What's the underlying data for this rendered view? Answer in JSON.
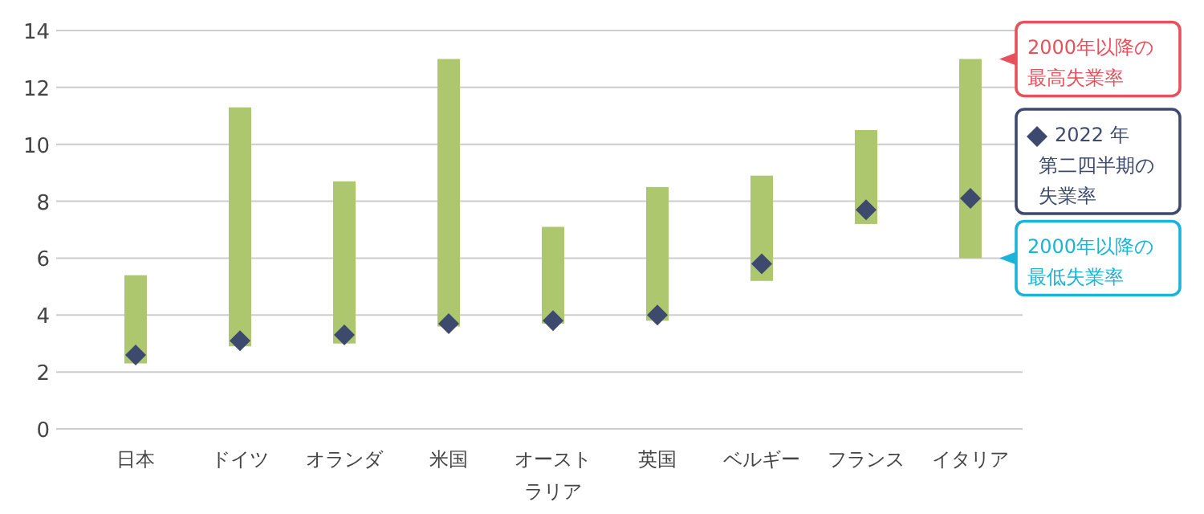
{
  "chart_data": {
    "type": "bar",
    "categories": [
      "日本",
      "ドイツ",
      "オランダ",
      "米国",
      "オーストラリア",
      "英国",
      "ベルギー",
      "フランス",
      "イタリア"
    ],
    "series": [
      {
        "color": "#adc76f",
        "base": [
          2.3,
          2.9,
          3.0,
          3.6,
          3.7,
          3.8,
          5.2,
          7.2,
          6.0
        ],
        "values": [
          3.1,
          8.4,
          5.7,
          9.4,
          3.4,
          4.7,
          3.7,
          3.3,
          7.0
        ]
      },
      {
        "type": "scatter",
        "name": "2022 年第二四半期の失業率",
        "color": "#3d4a6e",
        "marker": "diamond",
        "x": [
          "日本",
          "ドイツ",
          "オランダ",
          "米国",
          "オーストラリア",
          "英国",
          "ベルギー",
          "フランス",
          "イタリア"
        ],
        "values": [
          2.6,
          3.1,
          3.3,
          3.7,
          3.8,
          4.0,
          5.8,
          7.7,
          8.1
        ]
      }
    ],
    "ylim": [
      0,
      14
    ],
    "yticks": [
      0,
      2,
      4,
      6,
      8,
      10,
      12,
      14
    ],
    "grid": "y",
    "legend": "right",
    "annotations": [
      {
        "text": "2000年以降の最高失業率",
        "x": "イタリア",
        "y": 13.0
      },
      {
        "text": "2000年以降の最低失業率",
        "x": "イタリア",
        "y": 6.0
      }
    ]
  }
}
